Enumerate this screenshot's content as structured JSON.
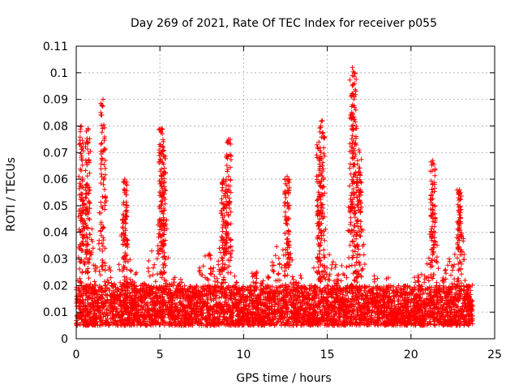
{
  "chart_data": {
    "type": "scatter",
    "title": "Day 269 of 2021, Rate Of TEC Index for receiver p055",
    "xlabel": "GPS time / hours",
    "ylabel": "ROTI / TECUs",
    "xlim": [
      0,
      25
    ],
    "ylim": [
      0,
      0.11
    ],
    "x_ticks": [
      "0",
      "5",
      "10",
      "15",
      "20",
      "25"
    ],
    "y_ticks": [
      "0",
      "0.01",
      "0.02",
      "0.03",
      "0.04",
      "0.05",
      "0.06",
      "0.07",
      "0.08",
      "0.09",
      "0.1",
      "0.11"
    ],
    "grid": true,
    "marker": "+",
    "series_color": "#ff0000",
    "data_extent_hours": [
      0,
      23.7
    ],
    "baseline_band": [
      0.005,
      0.02
    ],
    "peaks": [
      {
        "x": 0.3,
        "y": 0.08
      },
      {
        "x": 0.7,
        "y": 0.079
      },
      {
        "x": 1.6,
        "y": 0.09
      },
      {
        "x": 2.9,
        "y": 0.06
      },
      {
        "x": 5.1,
        "y": 0.079
      },
      {
        "x": 5.2,
        "y": 0.072
      },
      {
        "x": 8.8,
        "y": 0.06
      },
      {
        "x": 9.1,
        "y": 0.075
      },
      {
        "x": 12.6,
        "y": 0.061
      },
      {
        "x": 14.5,
        "y": 0.074
      },
      {
        "x": 14.7,
        "y": 0.082
      },
      {
        "x": 16.5,
        "y": 0.102
      },
      {
        "x": 16.6,
        "y": 0.1
      },
      {
        "x": 16.9,
        "y": 0.071
      },
      {
        "x": 21.3,
        "y": 0.067
      },
      {
        "x": 22.9,
        "y": 0.056
      }
    ]
  }
}
